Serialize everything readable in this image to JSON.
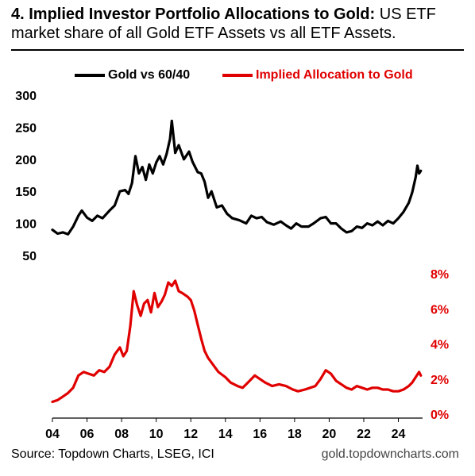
{
  "header": {
    "title_bold": "4. Implied Investor Portfolio Allocations to Gold:",
    "title_rest": " US ETF market share of all Gold ETF Assets vs all ETF Assets."
  },
  "footer": {
    "source": "Source: Topdown Charts, LSEG, ICI",
    "site": "gold.topdowncharts.com"
  },
  "colors": {
    "gold_vs_6040": "#000000",
    "implied_allocation": "#e00000"
  },
  "chart_data": {
    "type": "line",
    "title": "4. Implied Investor Portfolio Allocations to Gold: US ETF market share of all Gold ETF Assets vs all ETF Assets.",
    "x_axis": {
      "type": "time",
      "range": [
        2004.0,
        2025.4
      ],
      "tick_values": [
        2004,
        2006,
        2008,
        2010,
        2012,
        2014,
        2016,
        2018,
        2020,
        2022,
        2024
      ],
      "tick_labels": [
        "04",
        "06",
        "08",
        "10",
        "12",
        "14",
        "16",
        "18",
        "20",
        "22",
        "24"
      ]
    },
    "y_left": {
      "range": [
        0,
        300
      ],
      "ticks": [
        50,
        100,
        150,
        200,
        250,
        300
      ],
      "tick_labels": [
        "50",
        "100",
        "150",
        "200",
        "250",
        "300"
      ]
    },
    "y_right": {
      "range": [
        0,
        8
      ],
      "unit": "%",
      "ticks": [
        0,
        2,
        4,
        6,
        8
      ],
      "tick_labels": [
        "0%",
        "2%",
        "4%",
        "6%",
        "8%"
      ]
    },
    "legend": {
      "placement": "top"
    },
    "grid": false,
    "series": [
      {
        "name": "Gold vs 60/40",
        "axis": "left",
        "color": "#000000",
        "points": [
          [
            2004.0,
            90
          ],
          [
            2004.3,
            84
          ],
          [
            2004.6,
            86
          ],
          [
            2004.9,
            83
          ],
          [
            2005.2,
            95
          ],
          [
            2005.5,
            112
          ],
          [
            2005.7,
            120
          ],
          [
            2006.0,
            109
          ],
          [
            2006.3,
            104
          ],
          [
            2006.6,
            112
          ],
          [
            2006.9,
            108
          ],
          [
            2007.3,
            120
          ],
          [
            2007.6,
            128
          ],
          [
            2007.9,
            150
          ],
          [
            2008.2,
            152
          ],
          [
            2008.4,
            146
          ],
          [
            2008.6,
            163
          ],
          [
            2008.8,
            205
          ],
          [
            2009.0,
            178
          ],
          [
            2009.2,
            188
          ],
          [
            2009.4,
            168
          ],
          [
            2009.6,
            192
          ],
          [
            2009.8,
            178
          ],
          [
            2010.0,
            195
          ],
          [
            2010.2,
            205
          ],
          [
            2010.4,
            192
          ],
          [
            2010.6,
            208
          ],
          [
            2010.8,
            232
          ],
          [
            2010.9,
            260
          ],
          [
            2011.1,
            210
          ],
          [
            2011.3,
            222
          ],
          [
            2011.6,
            200
          ],
          [
            2011.9,
            212
          ],
          [
            2012.1,
            196
          ],
          [
            2012.4,
            180
          ],
          [
            2012.6,
            178
          ],
          [
            2012.8,
            165
          ],
          [
            2013.0,
            140
          ],
          [
            2013.2,
            150
          ],
          [
            2013.5,
            125
          ],
          [
            2013.8,
            128
          ],
          [
            2014.1,
            115
          ],
          [
            2014.4,
            108
          ],
          [
            2014.8,
            105
          ],
          [
            2015.2,
            100
          ],
          [
            2015.5,
            112
          ],
          [
            2015.8,
            108
          ],
          [
            2016.1,
            110
          ],
          [
            2016.4,
            102
          ],
          [
            2016.8,
            98
          ],
          [
            2017.2,
            103
          ],
          [
            2017.5,
            97
          ],
          [
            2017.8,
            92
          ],
          [
            2018.1,
            100
          ],
          [
            2018.4,
            95
          ],
          [
            2018.8,
            95
          ],
          [
            2019.1,
            100
          ],
          [
            2019.5,
            108
          ],
          [
            2019.8,
            110
          ],
          [
            2020.1,
            100
          ],
          [
            2020.4,
            100
          ],
          [
            2020.7,
            92
          ],
          [
            2021.0,
            86
          ],
          [
            2021.3,
            88
          ],
          [
            2021.6,
            95
          ],
          [
            2021.9,
            93
          ],
          [
            2022.2,
            100
          ],
          [
            2022.5,
            97
          ],
          [
            2022.8,
            103
          ],
          [
            2023.1,
            97
          ],
          [
            2023.4,
            104
          ],
          [
            2023.7,
            100
          ],
          [
            2024.0,
            108
          ],
          [
            2024.3,
            118
          ],
          [
            2024.6,
            132
          ],
          [
            2024.8,
            148
          ],
          [
            2025.0,
            172
          ],
          [
            2025.1,
            190
          ],
          [
            2025.2,
            178
          ],
          [
            2025.3,
            182
          ]
        ]
      },
      {
        "name": "Implied Allocation to Gold",
        "axis": "right",
        "color": "#e00000",
        "points": [
          [
            2004.0,
            0.7
          ],
          [
            2004.3,
            0.8
          ],
          [
            2004.6,
            1.0
          ],
          [
            2004.9,
            1.2
          ],
          [
            2005.2,
            1.5
          ],
          [
            2005.5,
            2.2
          ],
          [
            2005.8,
            2.4
          ],
          [
            2006.1,
            2.3
          ],
          [
            2006.4,
            2.2
          ],
          [
            2006.7,
            2.5
          ],
          [
            2007.0,
            2.4
          ],
          [
            2007.3,
            2.7
          ],
          [
            2007.6,
            3.4
          ],
          [
            2007.9,
            3.8
          ],
          [
            2008.1,
            3.3
          ],
          [
            2008.3,
            3.6
          ],
          [
            2008.5,
            5.0
          ],
          [
            2008.7,
            7.0
          ],
          [
            2008.9,
            6.2
          ],
          [
            2009.1,
            5.6
          ],
          [
            2009.3,
            6.3
          ],
          [
            2009.5,
            6.5
          ],
          [
            2009.7,
            5.8
          ],
          [
            2009.9,
            6.9
          ],
          [
            2010.1,
            6.1
          ],
          [
            2010.3,
            6.4
          ],
          [
            2010.5,
            6.8
          ],
          [
            2010.7,
            7.5
          ],
          [
            2010.9,
            7.3
          ],
          [
            2011.1,
            7.6
          ],
          [
            2011.3,
            7.0
          ],
          [
            2011.5,
            6.9
          ],
          [
            2011.8,
            6.7
          ],
          [
            2012.0,
            6.5
          ],
          [
            2012.2,
            5.9
          ],
          [
            2012.4,
            5.1
          ],
          [
            2012.6,
            4.3
          ],
          [
            2012.8,
            3.6
          ],
          [
            2013.0,
            3.2
          ],
          [
            2013.3,
            2.8
          ],
          [
            2013.6,
            2.4
          ],
          [
            2014.0,
            2.1
          ],
          [
            2014.3,
            1.8
          ],
          [
            2014.7,
            1.6
          ],
          [
            2015.0,
            1.5
          ],
          [
            2015.3,
            1.8
          ],
          [
            2015.7,
            2.2
          ],
          [
            2016.0,
            2.0
          ],
          [
            2016.3,
            1.8
          ],
          [
            2016.7,
            1.6
          ],
          [
            2017.1,
            1.7
          ],
          [
            2017.5,
            1.6
          ],
          [
            2017.9,
            1.4
          ],
          [
            2018.2,
            1.3
          ],
          [
            2018.6,
            1.4
          ],
          [
            2018.9,
            1.5
          ],
          [
            2019.2,
            1.6
          ],
          [
            2019.5,
            2.0
          ],
          [
            2019.8,
            2.5
          ],
          [
            2020.1,
            2.3
          ],
          [
            2020.4,
            1.9
          ],
          [
            2020.7,
            1.7
          ],
          [
            2021.0,
            1.5
          ],
          [
            2021.3,
            1.4
          ],
          [
            2021.6,
            1.6
          ],
          [
            2021.9,
            1.5
          ],
          [
            2022.2,
            1.4
          ],
          [
            2022.5,
            1.5
          ],
          [
            2022.8,
            1.5
          ],
          [
            2023.1,
            1.4
          ],
          [
            2023.4,
            1.4
          ],
          [
            2023.7,
            1.3
          ],
          [
            2024.0,
            1.3
          ],
          [
            2024.3,
            1.4
          ],
          [
            2024.6,
            1.6
          ],
          [
            2024.8,
            1.8
          ],
          [
            2025.0,
            2.1
          ],
          [
            2025.2,
            2.4
          ],
          [
            2025.3,
            2.2
          ]
        ]
      }
    ]
  }
}
